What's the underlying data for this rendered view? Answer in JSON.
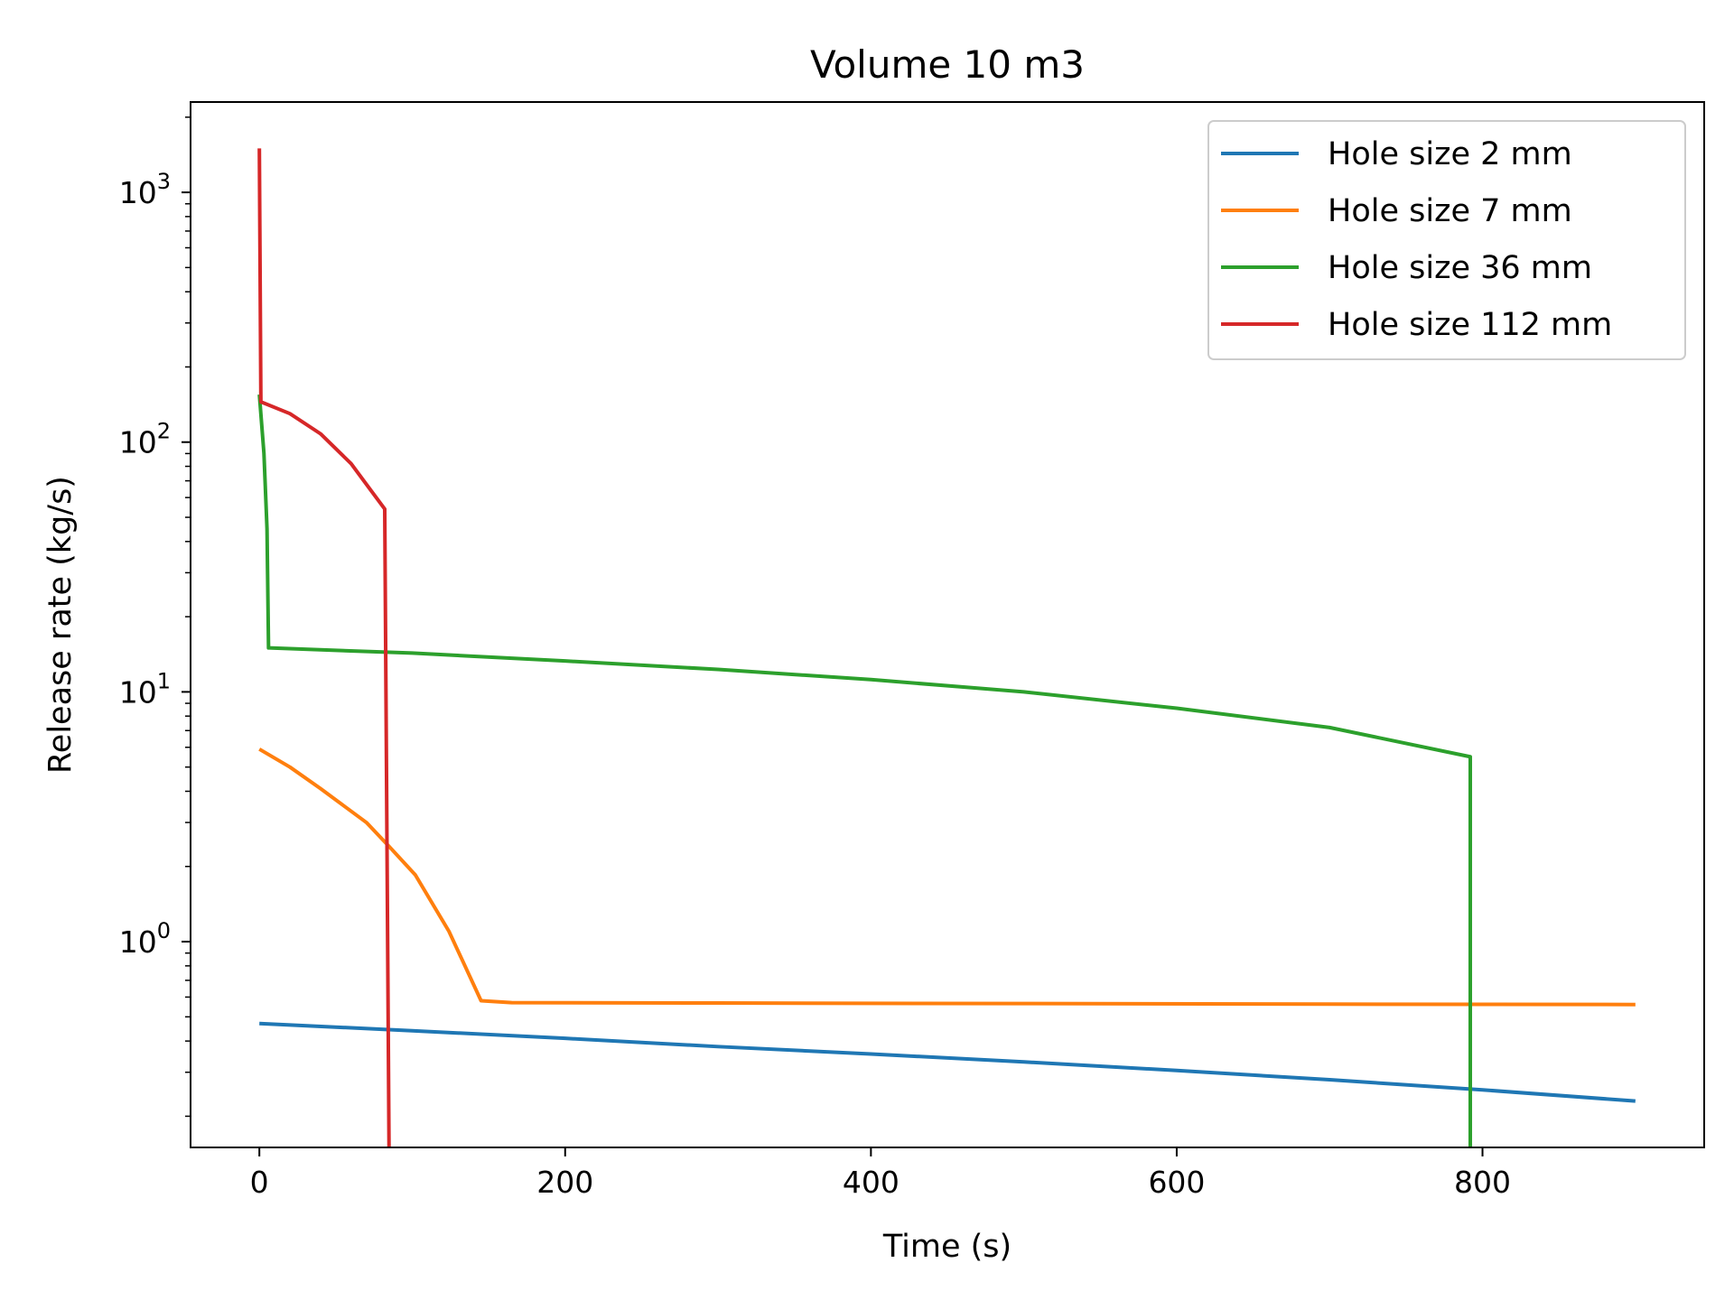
{
  "chart_data": {
    "type": "line",
    "title": "Volume 10 m3",
    "xlabel": "Time (s)",
    "ylabel": "Release rate (kg/s)",
    "xlim": [
      -45,
      945
    ],
    "ylim": [
      0.15,
      2300
    ],
    "yscale": "log",
    "x_ticks": [
      0,
      200,
      400,
      600,
      800
    ],
    "x_tick_labels": [
      "0",
      "200",
      "400",
      "600",
      "800"
    ],
    "y_ticks": [
      {
        "value": 1,
        "base": "10",
        "exp": "0"
      },
      {
        "value": 10,
        "base": "10",
        "exp": "1"
      },
      {
        "value": 100,
        "base": "10",
        "exp": "2"
      },
      {
        "value": 1000,
        "base": "10",
        "exp": "3"
      }
    ],
    "grid": false,
    "legend_position": "top-right",
    "series": [
      {
        "name": "Hole size 2 mm",
        "color": "#1f77b4",
        "points": [
          [
            0,
            0.47
          ],
          [
            100,
            0.44
          ],
          [
            200,
            0.41
          ],
          [
            300,
            0.38
          ],
          [
            400,
            0.355
          ],
          [
            500,
            0.33
          ],
          [
            600,
            0.305
          ],
          [
            700,
            0.28
          ],
          [
            800,
            0.255
          ],
          [
            900,
            0.23
          ]
        ]
      },
      {
        "name": "Hole size 7 mm",
        "color": "#ff7f0e",
        "points": [
          [
            0,
            5.9
          ],
          [
            20,
            5.0
          ],
          [
            40,
            4.1
          ],
          [
            70,
            3.0
          ],
          [
            85,
            2.4
          ],
          [
            102,
            1.85
          ],
          [
            124,
            1.1
          ],
          [
            145,
            0.58
          ],
          [
            165,
            0.57
          ],
          [
            300,
            0.568
          ],
          [
            500,
            0.565
          ],
          [
            700,
            0.562
          ],
          [
            900,
            0.56
          ]
        ]
      },
      {
        "name": "Hole size 36 mm",
        "color": "#2ca02c",
        "points": [
          [
            0,
            155
          ],
          [
            3,
            90
          ],
          [
            5,
            45
          ],
          [
            6,
            15
          ],
          [
            100,
            14.3
          ],
          [
            200,
            13.3
          ],
          [
            300,
            12.3
          ],
          [
            400,
            11.2
          ],
          [
            500,
            10.0
          ],
          [
            600,
            8.6
          ],
          [
            700,
            7.2
          ],
          [
            792,
            5.5
          ],
          [
            792,
            0.1
          ]
        ]
      },
      {
        "name": "Hole size 112 mm",
        "color": "#d62728",
        "points": [
          [
            0,
            1500
          ],
          [
            1,
            145
          ],
          [
            20,
            130
          ],
          [
            40,
            108
          ],
          [
            60,
            82
          ],
          [
            73,
            64
          ],
          [
            82,
            54
          ],
          [
            85,
            0.1
          ]
        ]
      }
    ]
  }
}
